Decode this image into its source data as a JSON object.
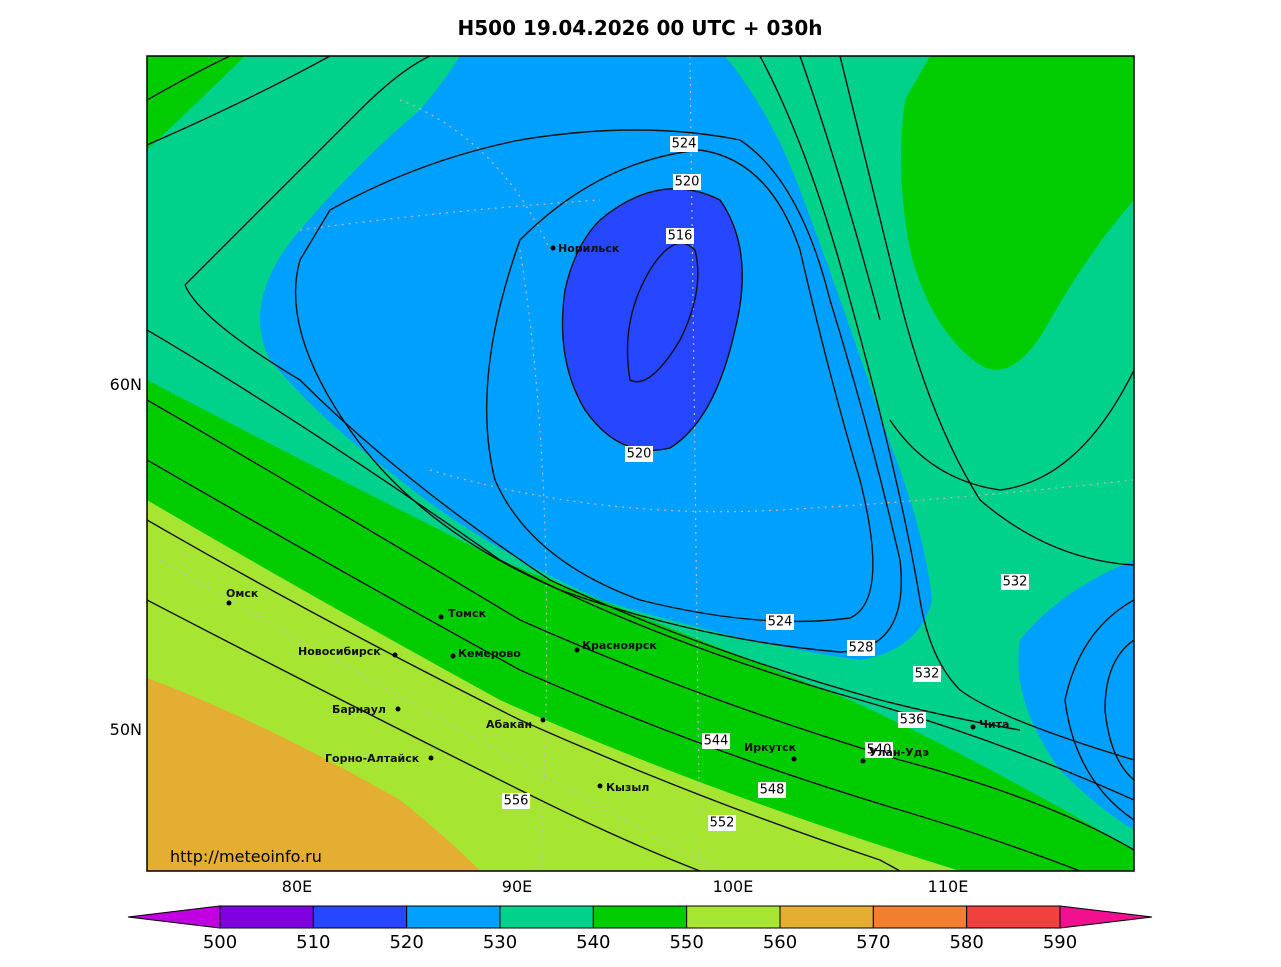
{
  "title": "H500  19.04.2026 00 UTC + 030h",
  "source_url": "http://meteoinfo.ru",
  "lat_labels": [
    "60N",
    "50N"
  ],
  "lon_labels": [
    "80E",
    "90E",
    "100E",
    "110E"
  ],
  "contour_labels": [
    "524",
    "520",
    "516",
    "520",
    "524",
    "528",
    "532",
    "532",
    "536",
    "540",
    "544",
    "548",
    "552",
    "556"
  ],
  "cities": [
    "Норильск",
    "Омск",
    "Томск",
    "Новосибирск",
    "Кемерово",
    "Красноярск",
    "Барнаул",
    "Абакан",
    "Горно-Алтайск",
    "Кызыл",
    "Иркутск",
    "Улан-Удэ",
    "Чита"
  ],
  "colorbar": {
    "levels": [
      500,
      510,
      520,
      530,
      540,
      550,
      560,
      570,
      580,
      590
    ],
    "colors": [
      "#c000e0",
      "#8000e0",
      "#2646ff",
      "#00a0ff",
      "#00d28c",
      "#00cc00",
      "#a6e632",
      "#e4ae32",
      "#f08030",
      "#f04040",
      "#f01090"
    ]
  }
}
